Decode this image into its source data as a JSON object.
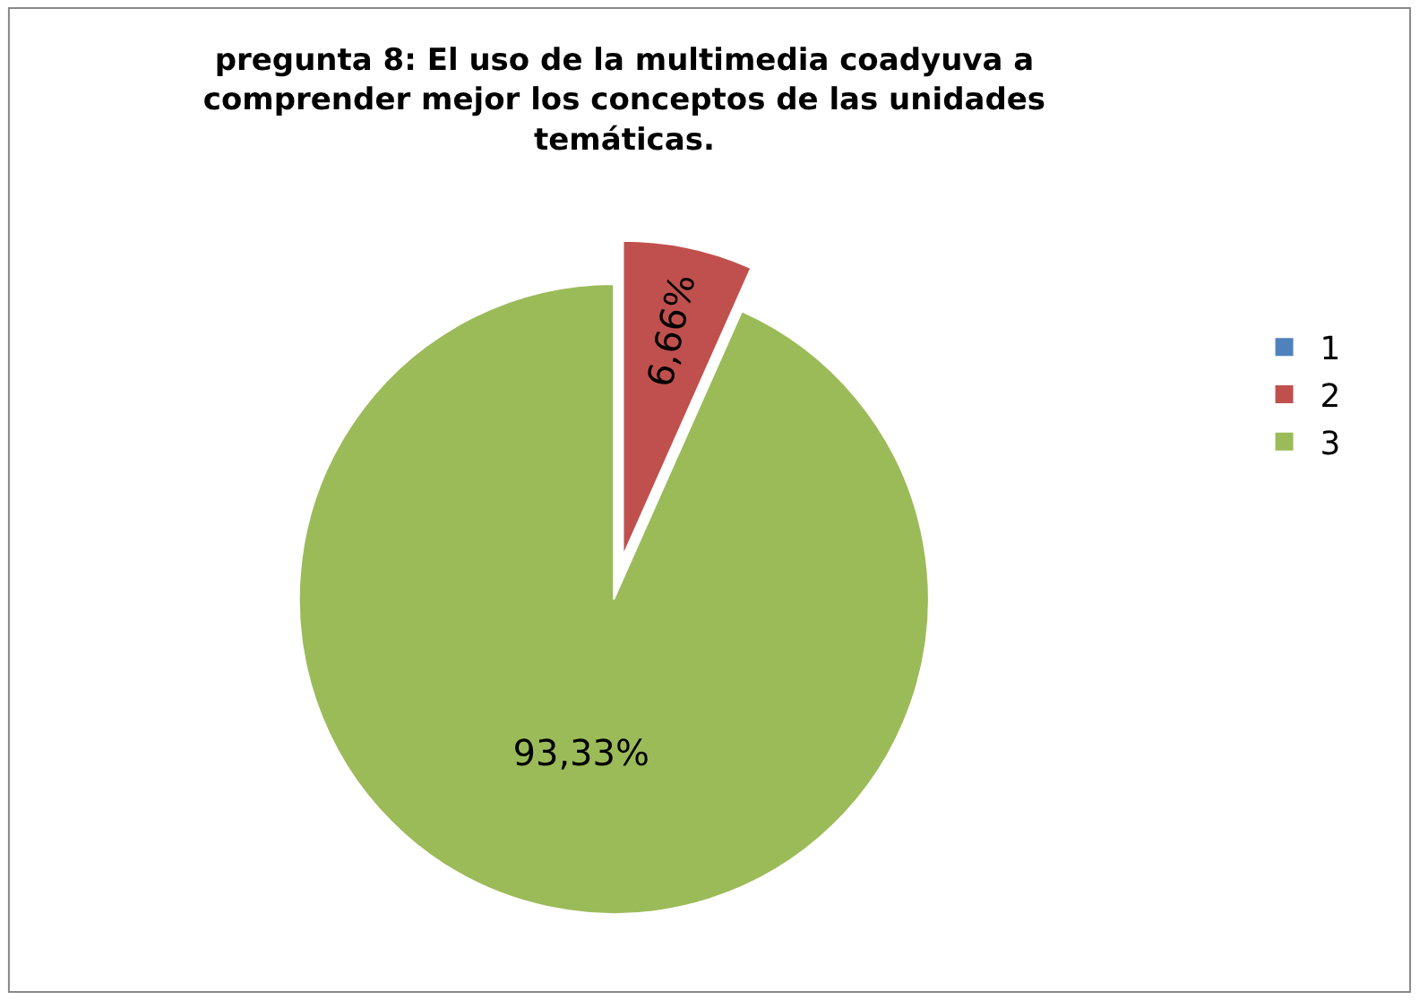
{
  "chart_data": {
    "type": "pie",
    "title": "pregunta 8: El uso de la multimedia coadyuva a comprender mejor los conceptos de las unidades temáticas.",
    "categories": [
      "1",
      "2",
      "3"
    ],
    "values": [
      0,
      6.66,
      93.33
    ],
    "value_labels": [
      null,
      "6,66%",
      "93,33%"
    ],
    "colors": [
      "#4f81bd",
      "#c0504d",
      "#9bbb59"
    ],
    "legend": "right"
  }
}
